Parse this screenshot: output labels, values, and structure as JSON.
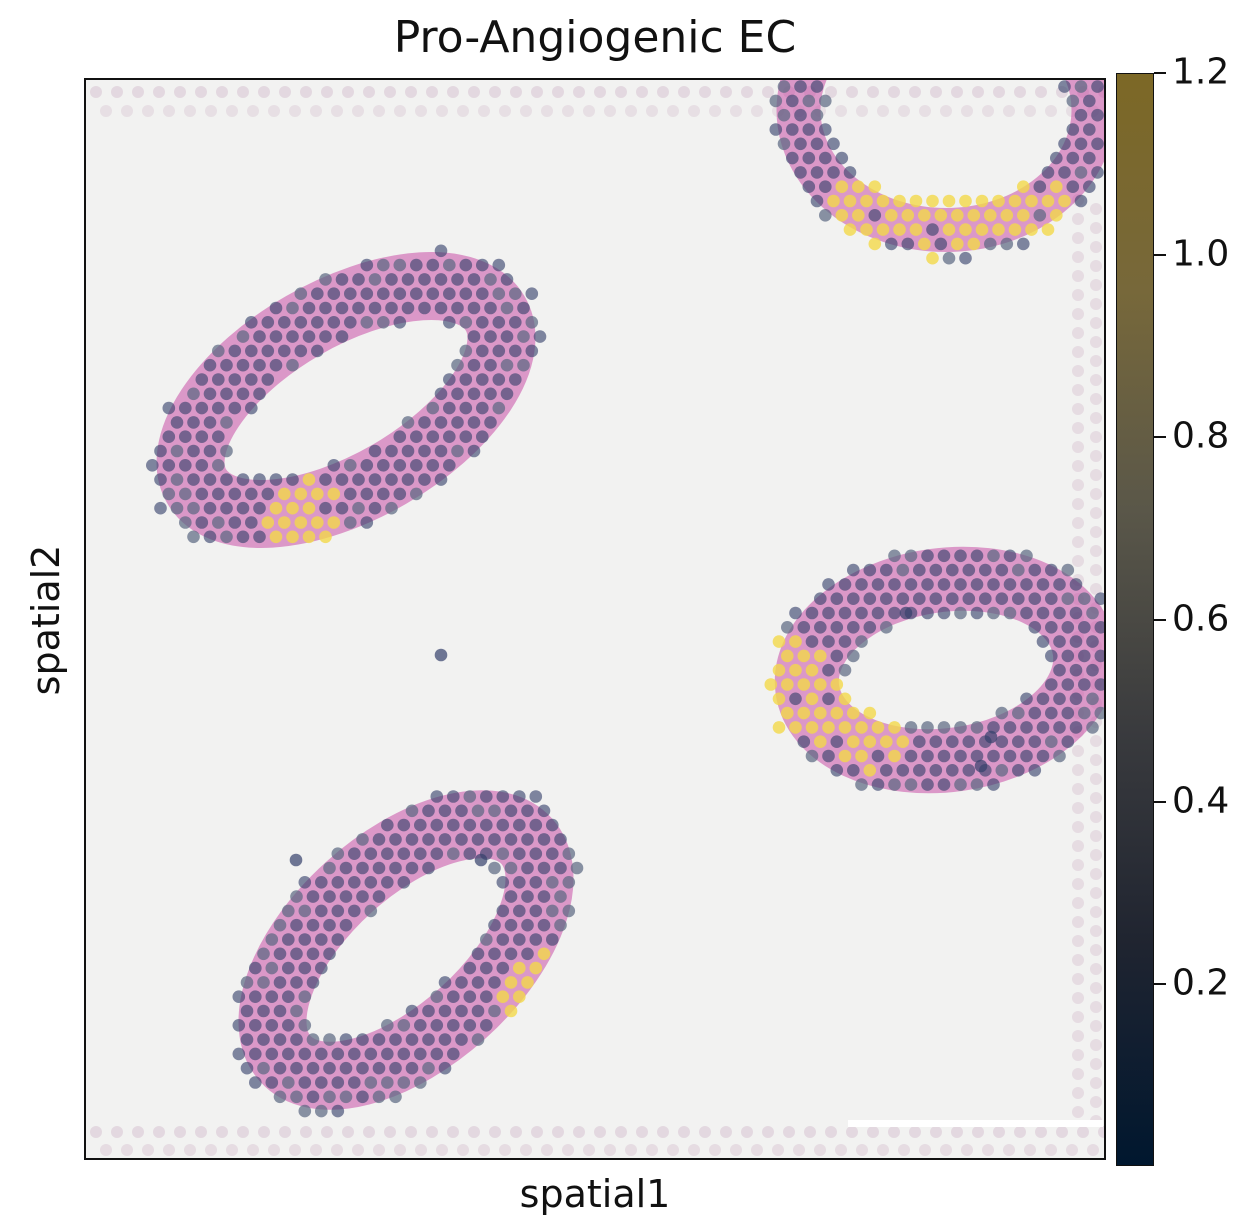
{
  "chart_data": {
    "type": "scatter",
    "title": "Pro-Angiogenic EC",
    "xlabel": "spatial1",
    "ylabel": "spatial2",
    "colorbar": {
      "range": [
        0,
        1.2
      ],
      "ticks": [
        "0.2",
        "0.4",
        "0.6",
        "0.8",
        "1.0",
        "1.2"
      ],
      "tick_values": [
        0.2,
        0.4,
        0.6,
        0.8,
        1.0,
        1.2
      ],
      "colors": [
        "#00172f",
        "#3a3b3e",
        "#7c6826"
      ]
    },
    "background": "H&E tissue image with four vessel cross-sections",
    "colors": {
      "tissue": "#c84ea6",
      "spot_low": "#35406b",
      "spot_high": "#f3d84a",
      "fiducial": "#c9a8bf"
    },
    "grid": false
  }
}
